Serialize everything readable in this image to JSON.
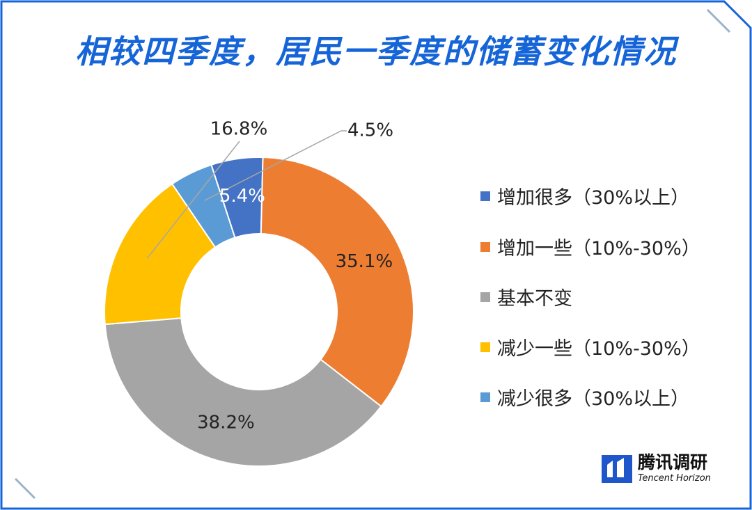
{
  "title": "相较四季度，居民一季度的储蓄变化情况",
  "brand": {
    "name_cn": "腾讯调研",
    "name_en": "Tencent Horizon"
  },
  "colors": {
    "frame": "#1565d8",
    "corner_accent": "#9ab3c9",
    "label_dark": "#222222",
    "label_light": "#ffffff"
  },
  "chart_data": {
    "type": "pie",
    "variant": "donut",
    "title": "相较四季度，居民一季度的储蓄变化情况",
    "legend_position": "right",
    "slices": [
      {
        "label": "增加很多（30%以上）",
        "value": 5.4,
        "display": "5.4%",
        "color": "#4472c4"
      },
      {
        "label": "增加一些（10%-30%）",
        "value": 35.1,
        "display": "35.1%",
        "color": "#ed7d31"
      },
      {
        "label": "基本不变",
        "value": 38.2,
        "display": "38.2%",
        "color": "#a5a5a5"
      },
      {
        "label": "减少一些（10%-30%）",
        "value": 16.8,
        "display": "16.8%",
        "color": "#ffc000"
      },
      {
        "label": "减少很多（30%以上）",
        "value": 4.5,
        "display": "4.5%",
        "color": "#5b9bd5"
      }
    ]
  }
}
